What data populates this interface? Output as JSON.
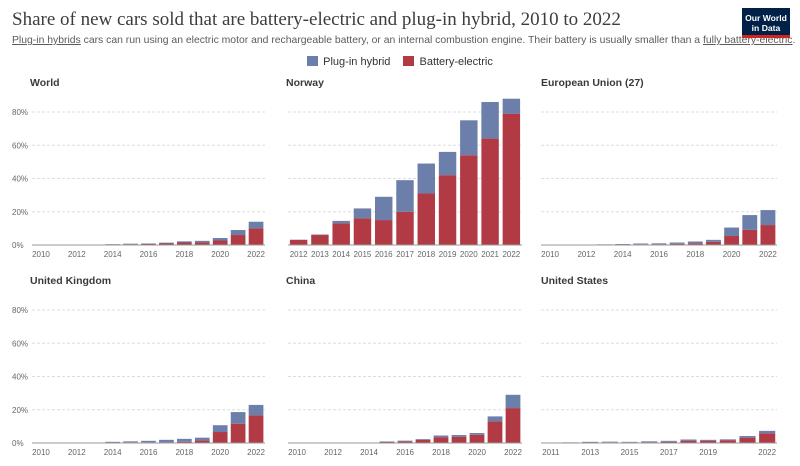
{
  "title": "Share of new cars sold that are battery-electric and plug-in hybrid, 2010 to 2022",
  "subtitle": {
    "link1": "Plug-in hybrids",
    "text1": " cars can run using an electric motor and rechargeable battery, or an internal combustion engine. Their battery is usually smaller than a ",
    "link2": "fully battery-electric",
    "text2": "."
  },
  "logo": {
    "line1": "Our World",
    "line2": "in Data"
  },
  "legend": {
    "phev": "Plug-in hybrid",
    "bev": "Battery-electric"
  },
  "colors": {
    "phev": "#6b7faa",
    "bev": "#b13a44",
    "grid": "#dddddd",
    "axis_text": "#666666",
    "panel_title": "#3a3a3a",
    "baseline": "#999999"
  },
  "chart_data": [
    {
      "type": "bar",
      "stacked": true,
      "title": "World",
      "categories": [
        "2010",
        "2011",
        "2012",
        "2013",
        "2014",
        "2015",
        "2016",
        "2017",
        "2018",
        "2019",
        "2020",
        "2021",
        "2022"
      ],
      "tick_labels": [
        "2010",
        "2012",
        "2014",
        "2016",
        "2018",
        "2020",
        "2022"
      ],
      "series": [
        {
          "name": "Battery-electric",
          "values": [
            0,
            0.1,
            0.1,
            0.2,
            0.3,
            0.5,
            0.6,
            0.9,
            1.5,
            1.7,
            2.7,
            6.0,
            10.0
          ]
        },
        {
          "name": "Plug-in hybrid",
          "values": [
            0,
            0,
            0.1,
            0.1,
            0.2,
            0.3,
            0.3,
            0.5,
            0.7,
            0.8,
            1.5,
            3.0,
            4.0
          ]
        }
      ],
      "ylim": [
        0,
        80
      ],
      "yticks": [
        "0%",
        "20%",
        "40%",
        "60%",
        "80%"
      ],
      "show_yticks": true
    },
    {
      "type": "bar",
      "stacked": true,
      "title": "Norway",
      "categories": [
        "2012",
        "2013",
        "2014",
        "2015",
        "2016",
        "2017",
        "2018",
        "2019",
        "2020",
        "2021",
        "2022"
      ],
      "tick_labels": [
        "2012",
        "2013",
        "2014",
        "2015",
        "2016",
        "2017",
        "2018",
        "2019",
        "2020",
        "2021",
        "2022"
      ],
      "series": [
        {
          "name": "Battery-electric",
          "values": [
            3,
            6,
            13,
            16,
            15,
            20,
            31,
            42,
            54,
            64,
            79
          ]
        },
        {
          "name": "Plug-in hybrid",
          "values": [
            0.2,
            0.3,
            1.5,
            6,
            14,
            19,
            18,
            14,
            21,
            22,
            9
          ]
        }
      ],
      "ylim": [
        0,
        80
      ],
      "yticks": [
        "0%",
        "20%",
        "40%",
        "60%",
        "80%"
      ],
      "show_yticks": false
    },
    {
      "type": "bar",
      "stacked": true,
      "title": "European Union (27)",
      "categories": [
        "2010",
        "2011",
        "2012",
        "2013",
        "2014",
        "2015",
        "2016",
        "2017",
        "2018",
        "2019",
        "2020",
        "2021",
        "2022"
      ],
      "tick_labels": [
        "2010",
        "2012",
        "2014",
        "2016",
        "2018",
        "2020",
        "2022"
      ],
      "series": [
        {
          "name": "Battery-electric",
          "values": [
            0,
            0,
            0.1,
            0.2,
            0.3,
            0.4,
            0.5,
            0.7,
            1.0,
            1.9,
            5.4,
            9.1,
            12.0
          ]
        },
        {
          "name": "Plug-in hybrid",
          "values": [
            0,
            0,
            0.1,
            0.2,
            0.3,
            0.5,
            0.5,
            0.8,
            1.1,
            1.2,
            5.1,
            8.9,
            9.0
          ]
        }
      ],
      "ylim": [
        0,
        80
      ],
      "yticks": [
        "0%",
        "20%",
        "40%",
        "60%",
        "80%"
      ],
      "show_yticks": false
    },
    {
      "type": "bar",
      "stacked": true,
      "title": "United Kingdom",
      "categories": [
        "2010",
        "2011",
        "2012",
        "2013",
        "2014",
        "2015",
        "2016",
        "2017",
        "2018",
        "2019",
        "2020",
        "2021",
        "2022"
      ],
      "tick_labels": [
        "2010",
        "2012",
        "2014",
        "2016",
        "2018",
        "2020",
        "2022"
      ],
      "series": [
        {
          "name": "Battery-electric",
          "values": [
            0,
            0,
            0.1,
            0.1,
            0.3,
            0.4,
            0.4,
            0.5,
            0.7,
            1.6,
            6.6,
            11.6,
            16.6
          ]
        },
        {
          "name": "Plug-in hybrid",
          "values": [
            0,
            0,
            0.1,
            0.1,
            0.4,
            0.6,
            0.9,
            1.4,
            1.8,
            1.6,
            4.1,
            7.0,
            6.3
          ]
        }
      ],
      "ylim": [
        0,
        80
      ],
      "yticks": [
        "0%",
        "20%",
        "40%",
        "60%",
        "80%"
      ],
      "show_yticks": true
    },
    {
      "type": "bar",
      "stacked": true,
      "title": "China",
      "categories": [
        "2010",
        "2011",
        "2012",
        "2013",
        "2014",
        "2015",
        "2016",
        "2017",
        "2018",
        "2019",
        "2020",
        "2021",
        "2022"
      ],
      "tick_labels": [
        "2010",
        "2012",
        "2014",
        "2016",
        "2018",
        "2020",
        "2022"
      ],
      "series": [
        {
          "name": "Battery-electric",
          "values": [
            0,
            0,
            0,
            0.1,
            0.2,
            0.6,
            1.0,
            1.8,
            3.5,
            3.7,
            4.9,
            13.0,
            21.0
          ]
        },
        {
          "name": "Plug-in hybrid",
          "values": [
            0,
            0,
            0,
            0.1,
            0.1,
            0.3,
            0.4,
            0.5,
            1.0,
            1.1,
            1.1,
            3.0,
            8.0
          ]
        }
      ],
      "ylim": [
        0,
        80
      ],
      "yticks": [
        "0%",
        "20%",
        "40%",
        "60%",
        "80%"
      ],
      "show_yticks": false
    },
    {
      "type": "bar",
      "stacked": true,
      "title": "United States",
      "categories": [
        "2011",
        "2012",
        "2013",
        "2014",
        "2015",
        "2016",
        "2017",
        "2018",
        "2019",
        "2020",
        "2021",
        "2022"
      ],
      "tick_labels": [
        "2011",
        "2013",
        "2015",
        "2017",
        "2019",
        "2022"
      ],
      "series": [
        {
          "name": "Battery-electric",
          "values": [
            0.1,
            0.1,
            0.3,
            0.4,
            0.4,
            0.5,
            0.7,
            1.4,
            1.4,
            1.7,
            3.2,
            5.8
          ]
        },
        {
          "name": "Plug-in hybrid",
          "values": [
            0.1,
            0.3,
            0.4,
            0.4,
            0.3,
            0.5,
            0.6,
            0.7,
            0.5,
            0.5,
            1.0,
            1.5
          ]
        }
      ],
      "ylim": [
        0,
        80
      ],
      "yticks": [
        "0%",
        "20%",
        "40%",
        "60%",
        "80%"
      ],
      "show_yticks": false
    }
  ]
}
